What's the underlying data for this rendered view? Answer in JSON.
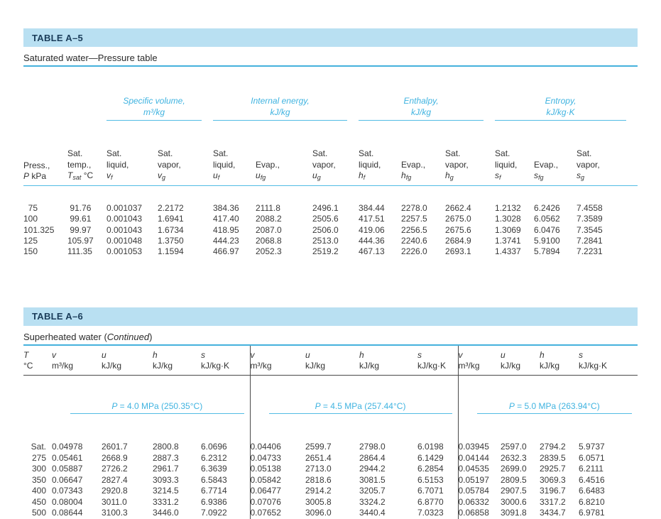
{
  "colors": {
    "band_background": "#b9e0f2",
    "title_text": "#1a3c59",
    "accent_cyan": "#3fb3e0",
    "rule_cyan": "#52bce4",
    "body_text": "#3a3a3a",
    "divider": "#4a4a4a"
  },
  "table_a5": {
    "title": "TABLE A–5",
    "caption": "Saturated water—Pressure table",
    "groups": [
      {
        "l1": "Specific volume,",
        "l2": "m³/kg"
      },
      {
        "l1": "Internal energy,",
        "l2": "kJ/kg"
      },
      {
        "l1": "Enthalpy,",
        "l2": "kJ/kg"
      },
      {
        "l1": "Entropy,",
        "l2": "kJ/kg·K"
      }
    ],
    "columns": [
      {
        "l1": "",
        "l2": "Press.,",
        "sym": "P",
        "sub": "",
        "unit": " kPa"
      },
      {
        "l1": "Sat.",
        "l2": "temp.,",
        "sym": "T",
        "sub": "sat",
        "unit": " °C"
      },
      {
        "l1": "Sat.",
        "l2": "liquid,",
        "sym": "v",
        "sub": "f",
        "unit": ""
      },
      {
        "l1": "Sat.",
        "l2": "vapor,",
        "sym": "v",
        "sub": "g",
        "unit": ""
      },
      {
        "l1": "Sat.",
        "l2": "liquid,",
        "sym": "u",
        "sub": "f",
        "unit": ""
      },
      {
        "l1": "",
        "l2": "Evap.,",
        "sym": "u",
        "sub": "fg",
        "unit": ""
      },
      {
        "l1": "Sat.",
        "l2": "vapor,",
        "sym": "u",
        "sub": "g",
        "unit": ""
      },
      {
        "l1": "Sat.",
        "l2": "liquid,",
        "sym": "h",
        "sub": "f",
        "unit": ""
      },
      {
        "l1": "",
        "l2": "Evap.,",
        "sym": "h",
        "sub": "fg",
        "unit": ""
      },
      {
        "l1": "Sat.",
        "l2": "vapor,",
        "sym": "h",
        "sub": "g",
        "unit": ""
      },
      {
        "l1": "Sat.",
        "l2": "liquid,",
        "sym": "s",
        "sub": "f",
        "unit": ""
      },
      {
        "l1": "",
        "l2": "Evap.,",
        "sym": "s",
        "sub": "fg",
        "unit": ""
      },
      {
        "l1": "Sat.",
        "l2": "vapor,",
        "sym": "s",
        "sub": "g",
        "unit": ""
      }
    ],
    "rows": [
      [
        "  75",
        " 91.76",
        "0.001037",
        "2.2172",
        "384.36",
        "2111.8",
        "2496.1",
        "384.44",
        "2278.0",
        "2662.4",
        "1.2132",
        "6.2426",
        "7.4558"
      ],
      [
        "100",
        " 99.61",
        "0.001043",
        "1.6941",
        "417.40",
        "2088.2",
        "2505.6",
        "417.51",
        "2257.5",
        "2675.0",
        "1.3028",
        "6.0562",
        "7.3589"
      ],
      [
        "101.325",
        " 99.97",
        "0.001043",
        "1.6734",
        "418.95",
        "2087.0",
        "2506.0",
        "419.06",
        "2256.5",
        "2675.6",
        "1.3069",
        "6.0476",
        "7.3545"
      ],
      [
        "125",
        "105.97",
        "0.001048",
        "1.3750",
        "444.23",
        "2068.8",
        "2513.0",
        "444.36",
        "2240.6",
        "2684.9",
        "1.3741",
        "5.9100",
        "7.2841"
      ],
      [
        "150",
        "111.35",
        "0.001053",
        "1.1594",
        "466.97",
        "2052.3",
        "2519.2",
        "467.13",
        "2226.0",
        "2693.1",
        "1.4337",
        "5.7894",
        "7.2231"
      ]
    ]
  },
  "table_a6": {
    "title": "TABLE A–6",
    "caption_prefix": "Superheated water (",
    "caption_italic": "Continued",
    "caption_suffix": ")",
    "columns": [
      {
        "sym": "T",
        "sub": "",
        "unit_line": "°C"
      },
      {
        "sym": "v",
        "sub": "",
        "unit_line": "m³/kg"
      },
      {
        "sym": "u",
        "sub": "",
        "unit_line": "kJ/kg"
      },
      {
        "sym": "h",
        "sub": "",
        "unit_line": "kJ/kg"
      },
      {
        "sym": "s",
        "sub": "",
        "unit_line": "kJ/kg·K"
      },
      {
        "sym": "v",
        "sub": "",
        "unit_line": "m³/kg"
      },
      {
        "sym": "u",
        "sub": "",
        "unit_line": "kJ/kg"
      },
      {
        "sym": "h",
        "sub": "",
        "unit_line": "kJ/kg"
      },
      {
        "sym": "s",
        "sub": "",
        "unit_line": "kJ/kg·K"
      },
      {
        "sym": "v",
        "sub": "",
        "unit_line": "m³/kg"
      },
      {
        "sym": "u",
        "sub": "",
        "unit_line": "kJ/kg"
      },
      {
        "sym": "h",
        "sub": "",
        "unit_line": "kJ/kg"
      },
      {
        "sym": "s",
        "sub": "",
        "unit_line": "kJ/kg·K"
      }
    ],
    "pressures": [
      {
        "sym": "P",
        "text": " = 4.0 MPa (250.35°C)"
      },
      {
        "sym": "P",
        "text": " = 4.5 MPa (257.44°C)"
      },
      {
        "sym": "P",
        "text": " = 5.0 MPa (263.94°C)"
      }
    ],
    "rows": [
      [
        "Sat.",
        "0.04978",
        "2601.7",
        "2800.8",
        "6.0696",
        "0.04406",
        "2599.7",
        "2798.0",
        "6.0198",
        "0.03945",
        "2597.0",
        "2794.2",
        "5.9737"
      ],
      [
        "275",
        "0.05461",
        "2668.9",
        "2887.3",
        "6.2312",
        "0.04733",
        "2651.4",
        "2864.4",
        "6.1429",
        "0.04144",
        "2632.3",
        "2839.5",
        "6.0571"
      ],
      [
        "300",
        "0.05887",
        "2726.2",
        "2961.7",
        "6.3639",
        "0.05138",
        "2713.0",
        "2944.2",
        "6.2854",
        "0.04535",
        "2699.0",
        "2925.7",
        "6.2111"
      ],
      [
        "350",
        "0.06647",
        "2827.4",
        "3093.3",
        "6.5843",
        "0.05842",
        "2818.6",
        "3081.5",
        "6.5153",
        "0.05197",
        "2809.5",
        "3069.3",
        "6.4516"
      ],
      [
        "400",
        "0.07343",
        "2920.8",
        "3214.5",
        "6.7714",
        "0.06477",
        "2914.2",
        "3205.7",
        "6.7071",
        "0.05784",
        "2907.5",
        "3196.7",
        "6.6483"
      ],
      [
        "450",
        "0.08004",
        "3011.0",
        "3331.2",
        "6.9386",
        "0.07076",
        "3005.8",
        "3324.2",
        "6.8770",
        "0.06332",
        "3000.6",
        "3317.2",
        "6.8210"
      ],
      [
        "500",
        "0.08644",
        "3100.3",
        "3446.0",
        "7.0922",
        "0.07652",
        "3096.0",
        "3440.4",
        "7.0323",
        "0.06858",
        "3091.8",
        "3434.7",
        "6.9781"
      ]
    ]
  }
}
